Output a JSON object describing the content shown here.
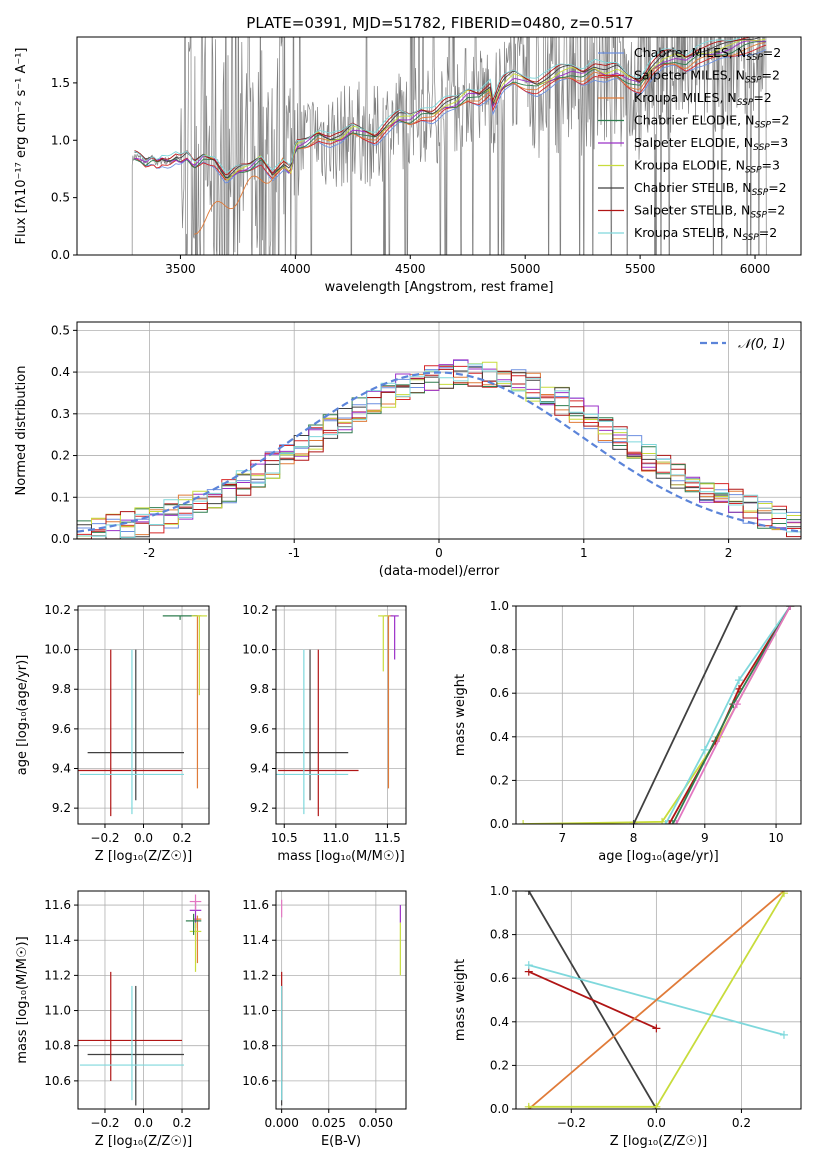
{
  "title": "PLATE=0391, MJD=51782, FIBERID=0480, z=0.517",
  "colors": {
    "grid": "#b0b0b0",
    "frame": "#000000",
    "normal_curve": "#5b84d9",
    "data_spectrum": "#808080"
  },
  "chart_data": [
    {
      "id": "spectrum",
      "type": "line",
      "title": "PLATE=0391, MJD=51782, FIBERID=0480, z=0.517",
      "xlabel": "wavelength [Angstrom, rest frame]",
      "ylabel": "Flux [f$_\\lambda$10$^{-17}$ erg cm$^{-2}$ s$^{-1}$ A$^{-1}$]",
      "ylabel_display": "Flux [fλ10⁻¹⁷ erg cm⁻² s⁻¹ A⁻¹]",
      "xlim": [
        3050,
        6200
      ],
      "ylim": [
        0,
        1.9
      ],
      "xticks": [
        3500,
        4000,
        4500,
        5000,
        5500,
        6000
      ],
      "yticks": [
        0.0,
        0.5,
        1.0,
        1.5
      ],
      "grid": false,
      "legend_position": "top-right",
      "legend": [
        {
          "label": "Chabrier MILES, N",
          "sub": "SSP",
          "suffix": "=2",
          "color": "#6c8fe0"
        },
        {
          "label": "Salpeter MILES, N",
          "sub": "SSP",
          "suffix": "=2",
          "color": "#d62728"
        },
        {
          "label": "Kroupa MILES, N",
          "sub": "SSP",
          "suffix": "=2",
          "color": "#e07b39"
        },
        {
          "label": "Chabrier ELODIE, N",
          "sub": "SSP",
          "suffix": "=2",
          "color": "#2f7d4f"
        },
        {
          "label": "Salpeter ELODIE, N",
          "sub": "SSP",
          "suffix": "=3",
          "color": "#9b30c8"
        },
        {
          "label": "Kroupa ELODIE, N",
          "sub": "SSP",
          "suffix": "=3",
          "color": "#c8dc3c"
        },
        {
          "label": "Chabrier STELIB, N",
          "sub": "SSP",
          "suffix": "=2",
          "color": "#404040"
        },
        {
          "label": "Salpeter STELIB, N",
          "sub": "SSP",
          "suffix": "=2",
          "color": "#b01515"
        },
        {
          "label": "Kroupa STELIB, N",
          "sub": "SSP",
          "suffix": "=2",
          "color": "#7fd8dc"
        }
      ],
      "data_x": [
        3290,
        3300,
        3320,
        3350,
        3380,
        3400,
        3420,
        3450,
        3480,
        3500,
        3530,
        3560,
        3600,
        3650,
        3700,
        3750,
        3800,
        3850,
        3900,
        3950,
        3980,
        4000,
        4050,
        4100,
        4150,
        4200,
        4250,
        4300,
        4350,
        4400,
        4450,
        4500,
        4550,
        4600,
        4650,
        4700,
        4750,
        4800,
        4850,
        4860,
        4900,
        4950,
        5000,
        5050,
        5100,
        5150,
        5200,
        5250,
        5300,
        5350,
        5400,
        5450,
        5500,
        5550,
        5600,
        5650,
        5700,
        5750,
        5800,
        5850,
        5900,
        5950,
        6000,
        6050
      ],
      "model_baseline": [
        0.82,
        0.86,
        0.85,
        0.8,
        0.84,
        0.8,
        0.83,
        0.81,
        0.84,
        0.82,
        0.86,
        0.78,
        0.85,
        0.82,
        0.66,
        0.74,
        0.76,
        0.84,
        0.7,
        0.78,
        0.72,
        0.95,
        0.98,
        1.05,
        1.0,
        1.02,
        1.1,
        1.06,
        1.02,
        1.12,
        1.2,
        1.18,
        1.24,
        1.22,
        1.3,
        1.32,
        1.4,
        1.38,
        1.45,
        1.3,
        1.48,
        1.55,
        1.5,
        1.47,
        1.52,
        1.58,
        1.6,
        1.56,
        1.62,
        1.58,
        1.6,
        1.52,
        1.48,
        1.62,
        1.7,
        1.72,
        1.68,
        1.74,
        1.76,
        1.78,
        1.8,
        1.84,
        1.86,
        1.88
      ]
    },
    {
      "id": "residuals",
      "type": "line",
      "xlabel": "(data-model)/error",
      "ylabel": "Normed distribution",
      "xlim": [
        -2.5,
        2.5
      ],
      "ylim": [
        0,
        0.52
      ],
      "xticks": [
        -2,
        -1,
        0,
        1,
        2
      ],
      "yticks": [
        0.0,
        0.1,
        0.2,
        0.3,
        0.4,
        0.5
      ],
      "grid": true,
      "legend_position": "top-right",
      "legend": [
        {
          "label": "𝒩(0, 1)",
          "color": "#5b84d9"
        }
      ],
      "normal": {
        "mean": 0,
        "sigma": 1
      },
      "hist_bin_width": 0.1
    },
    {
      "id": "age-vs-Z",
      "type": "scatter",
      "xlabel": "Z [log₁₀(Z/Z☉)]",
      "ylabel": "age  [log₁₀(age/yr)]",
      "xlim": [
        -0.34,
        0.34
      ],
      "ylim": [
        9.12,
        10.22
      ],
      "xticks": [
        -0.2,
        0.0,
        0.2
      ],
      "xticklabels": [
        "−0.2",
        "0.0",
        "0.2"
      ],
      "yticks": [
        9.2,
        9.4,
        9.6,
        9.8,
        10.0,
        10.2
      ],
      "grid": true,
      "points": [
        {
          "model": "Chabrier STELIB",
          "x": -0.04,
          "xerr": 0.25,
          "y": 9.48,
          "yerr_lo": 0.24,
          "yerr_hi": 0.52,
          "color": "#404040"
        },
        {
          "model": "Salpeter STELIB",
          "x": -0.17,
          "xerr": 0.37,
          "y": 9.39,
          "yerr_lo": 0.23,
          "yerr_hi": 0.61,
          "color": "#b01515"
        },
        {
          "model": "Kroupa STELIB",
          "x": -0.06,
          "xerr": 0.27,
          "y": 9.37,
          "yerr_lo": 0.2,
          "yerr_hi": 0.63,
          "color": "#7fd8dc"
        },
        {
          "model": "Kroupa MILES",
          "x": 0.28,
          "xerr": 0.02,
          "y": 10.17,
          "yerr_lo": 0.87,
          "yerr_hi": 0.0,
          "color": "#e07b39"
        },
        {
          "model": "Chabrier ELODIE",
          "x": 0.19,
          "xerr": 0.09,
          "y": 10.17,
          "yerr_lo": 0.02,
          "yerr_hi": 0.0,
          "color": "#2f7d4f"
        },
        {
          "model": "Kroupa ELODIE",
          "x": 0.29,
          "xerr": 0.04,
          "y": 10.17,
          "yerr_lo": 0.4,
          "yerr_hi": 0.0,
          "color": "#c8dc3c"
        }
      ]
    },
    {
      "id": "age-vs-mass",
      "type": "scatter",
      "xlabel": "mass [log₁₀(M/M☉)]",
      "xlim": [
        10.42,
        11.68
      ],
      "ylim": [
        9.12,
        10.22
      ],
      "xticks": [
        10.5,
        11.0,
        11.5
      ],
      "xticklabels": [
        "10.5",
        "11.0",
        "11.5"
      ],
      "yticks": [
        9.2,
        9.4,
        9.6,
        9.8,
        10.0,
        10.2
      ],
      "grid": true,
      "points": [
        {
          "model": "Chabrier STELIB",
          "x": 10.75,
          "xerr": 0.37,
          "y": 9.48,
          "yerr_lo": 0.24,
          "yerr_hi": 0.52,
          "color": "#404040"
        },
        {
          "model": "Salpeter STELIB",
          "x": 10.83,
          "xerr": 0.39,
          "y": 9.39,
          "yerr_lo": 0.23,
          "yerr_hi": 0.61,
          "color": "#b01515"
        },
        {
          "model": "Kroupa STELIB",
          "x": 10.69,
          "xerr": 0.43,
          "y": 9.37,
          "yerr_lo": 0.2,
          "yerr_hi": 0.63,
          "color": "#7fd8dc"
        },
        {
          "model": "Kroupa MILES",
          "x": 11.51,
          "xerr": 0.04,
          "y": 10.17,
          "yerr_lo": 0.87,
          "yerr_hi": 0.0,
          "color": "#e07b39"
        },
        {
          "model": "Salpeter ELODIE",
          "x": 11.57,
          "xerr": 0.04,
          "y": 10.17,
          "yerr_lo": 0.22,
          "yerr_hi": 0.0,
          "color": "#9b30c8"
        },
        {
          "model": "Kroupa ELODIE",
          "x": 11.46,
          "xerr": 0.05,
          "y": 10.17,
          "yerr_lo": 0.28,
          "yerr_hi": 0.0,
          "color": "#c8dc3c"
        }
      ]
    },
    {
      "id": "weight-vs-age",
      "type": "line",
      "xlabel": "age  [log₁₀(age/yr)]",
      "ylabel": "mass weight",
      "xlim": [
        6.35,
        10.35
      ],
      "ylim": [
        0,
        1.0
      ],
      "xticks": [
        7,
        8,
        9,
        10
      ],
      "xticklabels": [
        "7",
        "8",
        "9",
        "10"
      ],
      "yticks": [
        0.0,
        0.2,
        0.4,
        0.6,
        0.8,
        1.0
      ],
      "grid": true,
      "series": [
        {
          "model": "Kroupa ELODIE",
          "color": "#c8dc3c",
          "x": [
            6.45,
            8.4,
            9.2,
            10.2
          ],
          "y": [
            0.0,
            0.01,
            0.4,
            1.0
          ]
        },
        {
          "model": "Chabrier STELIB",
          "color": "#404040",
          "x": [
            8.0,
            9.45
          ],
          "y": [
            0.0,
            1.0
          ]
        },
        {
          "model": "Salpeter STELIB",
          "color": "#b01515",
          "x": [
            8.5,
            9.15,
            9.48,
            10.2
          ],
          "y": [
            0.0,
            0.38,
            0.62,
            1.0
          ]
        },
        {
          "model": "Kroupa STELIB",
          "color": "#7fd8dc",
          "x": [
            8.45,
            9.0,
            9.48,
            10.2
          ],
          "y": [
            0.0,
            0.34,
            0.66,
            1.0
          ]
        },
        {
          "model": "Chabrier ELODIE",
          "color": "#2f7d4f",
          "x": [
            8.55,
            9.4,
            10.2
          ],
          "y": [
            0.0,
            0.55,
            1.0
          ]
        },
        {
          "model": "Salpeter ELODIE",
          "color": "#e377c2",
          "x": [
            8.6,
            9.45,
            10.2
          ],
          "y": [
            0.0,
            0.55,
            1.0
          ]
        }
      ]
    },
    {
      "id": "mass-vs-Z",
      "type": "scatter",
      "xlabel": "Z [log₁₀(Z/Z☉)]",
      "ylabel": "mass [log₁₀(M/M☉)]",
      "xlim": [
        -0.34,
        0.34
      ],
      "ylim": [
        10.44,
        11.68
      ],
      "xticks": [
        -0.2,
        0.0,
        0.2
      ],
      "xticklabels": [
        "−0.2",
        "0.0",
        "0.2"
      ],
      "yticks": [
        10.6,
        10.8,
        11.0,
        11.2,
        11.4,
        11.6
      ],
      "grid": true,
      "points": [
        {
          "model": "Chabrier STELIB",
          "x": -0.04,
          "xerr": 0.25,
          "y": 10.75,
          "yerr_lo": 0.29,
          "yerr_hi": 0.39,
          "color": "#404040"
        },
        {
          "model": "Salpeter STELIB",
          "x": -0.17,
          "xerr": 0.37,
          "y": 10.83,
          "yerr_lo": 0.23,
          "yerr_hi": 0.39,
          "color": "#b01515"
        },
        {
          "model": "Kroupa STELIB",
          "x": -0.06,
          "xerr": 0.27,
          "y": 10.69,
          "yerr_lo": 0.2,
          "yerr_hi": 0.45,
          "color": "#7fd8dc"
        },
        {
          "model": "Kroupa MILES",
          "x": 0.28,
          "xerr": 0.02,
          "y": 11.52,
          "yerr_lo": 0.25,
          "yerr_hi": 0.02,
          "color": "#e07b39"
        },
        {
          "model": "Salpeter ELODIE",
          "x": 0.27,
          "xerr": 0.03,
          "y": 11.57,
          "yerr_lo": 0.1,
          "yerr_hi": 0.05,
          "color": "#9b30c8"
        },
        {
          "model": "Kroupa ELODIE",
          "x": 0.27,
          "xerr": 0.03,
          "y": 11.45,
          "yerr_lo": 0.23,
          "yerr_hi": 0.05,
          "color": "#c8dc3c"
        },
        {
          "model": "Salpeter MILES",
          "x": 0.27,
          "xerr": 0.03,
          "y": 11.62,
          "yerr_lo": 0.05,
          "yerr_hi": 0.04,
          "color": "#e377c2"
        },
        {
          "model": "Chabrier ELODIE",
          "x": 0.26,
          "xerr": 0.04,
          "y": 11.51,
          "yerr_lo": 0.08,
          "yerr_hi": 0.04,
          "color": "#2f7d4f"
        }
      ]
    },
    {
      "id": "mass-vs-EBV",
      "type": "scatter",
      "xlabel": "E(B-V)",
      "xlim": [
        -0.003,
        0.066
      ],
      "ylim": [
        10.44,
        11.68
      ],
      "xticks": [
        0.0,
        0.025,
        0.05
      ],
      "xticklabels": [
        "0.000",
        "0.025",
        "0.050"
      ],
      "yticks": [
        10.6,
        10.8,
        11.0,
        11.2,
        11.4,
        11.6
      ],
      "grid": true,
      "points": [
        {
          "model": "Chabrier STELIB",
          "x": 0.0,
          "y": 10.75,
          "yerr_lo": 0.29,
          "yerr_hi": 0.39,
          "color": "#404040"
        },
        {
          "model": "Salpeter STELIB",
          "x": 0.0,
          "y": 10.83,
          "yerr_lo": 0.23,
          "yerr_hi": 0.39,
          "color": "#b01515"
        },
        {
          "model": "Kroupa STELIB",
          "x": 0.0,
          "y": 10.69,
          "yerr_lo": 0.2,
          "yerr_hi": 0.45,
          "color": "#7fd8dc"
        },
        {
          "model": "Salpeter ELODIE",
          "x": 0.063,
          "y": 11.55,
          "yerr_lo": 0.05,
          "yerr_hi": 0.05,
          "color": "#9b30c8"
        },
        {
          "model": "Kroupa ELODIE",
          "x": 0.063,
          "y": 11.35,
          "yerr_lo": 0.15,
          "yerr_hi": 0.15,
          "color": "#c8dc3c"
        },
        {
          "model": "Salpeter MILES",
          "x": 0.0,
          "y": 11.58,
          "yerr_lo": 0.05,
          "yerr_hi": 0.05,
          "color": "#e377c2"
        }
      ]
    },
    {
      "id": "weight-vs-Z",
      "type": "line",
      "xlabel": "Z [log₁₀(Z/Z☉)]",
      "ylabel": "mass weight",
      "xlim": [
        -0.33,
        0.34
      ],
      "ylim": [
        0,
        1.0
      ],
      "xticks": [
        -0.2,
        0.0,
        0.2
      ],
      "xticklabels": [
        "−0.2",
        "0.0",
        "0.2"
      ],
      "yticks": [
        0.0,
        0.2,
        0.4,
        0.6,
        0.8,
        1.0
      ],
      "grid": true,
      "series": [
        {
          "model": "Chabrier STELIB",
          "color": "#404040",
          "x": [
            -0.3,
            0.0
          ],
          "y": [
            1.0,
            0.0
          ]
        },
        {
          "model": "Salpeter STELIB",
          "color": "#b01515",
          "x": [
            -0.3,
            0.0
          ],
          "y": [
            0.63,
            0.37
          ]
        },
        {
          "model": "Kroupa STELIB",
          "color": "#7fd8dc",
          "x": [
            -0.3,
            0.3
          ],
          "y": [
            0.66,
            0.34
          ]
        },
        {
          "model": "Kroupa MILES",
          "color": "#e07b39",
          "x": [
            -0.3,
            0.3
          ],
          "y": [
            0.0,
            1.0
          ]
        },
        {
          "model": "Kroupa ELODIE",
          "color": "#c8dc3c",
          "x": [
            -0.3,
            0.0,
            0.3
          ],
          "y": [
            0.01,
            0.01,
            0.99
          ]
        }
      ]
    }
  ]
}
